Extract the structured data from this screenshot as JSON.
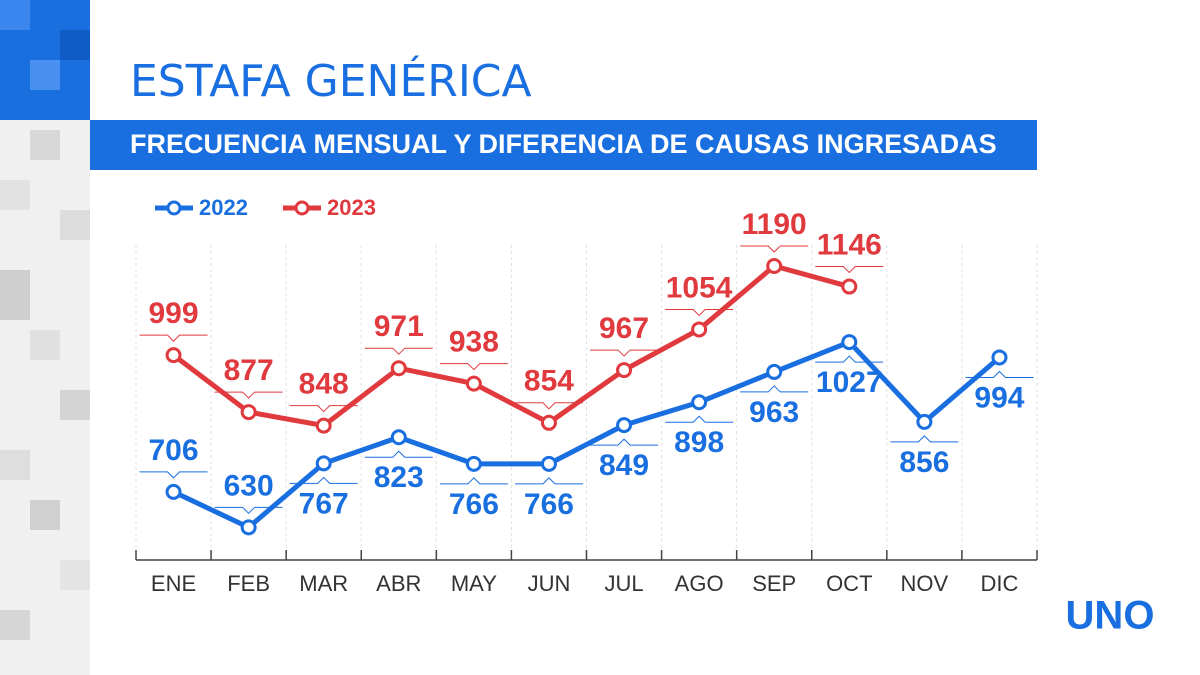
{
  "chart_data": {
    "type": "line",
    "title": "ESTAFA GENÉRICA",
    "subtitle": "FRECUENCIA MENSUAL Y DIFERENCIA DE CAUSAS INGRESADAS",
    "categories": [
      "ENE",
      "FEB",
      "MAR",
      "ABR",
      "MAY",
      "JUN",
      "JUL",
      "AGO",
      "SEP",
      "OCT",
      "NOV",
      "DIC"
    ],
    "series": [
      {
        "name": "2022",
        "color": "#1a6fe0",
        "values": [
          706,
          630,
          767,
          823,
          766,
          766,
          849,
          898,
          963,
          1027,
          856,
          994
        ]
      },
      {
        "name": "2023",
        "color": "#e03a3e",
        "values": [
          999,
          877,
          848,
          971,
          938,
          854,
          967,
          1054,
          1190,
          1146,
          null,
          null
        ]
      }
    ],
    "ylim": [
      560,
      1235
    ],
    "grid": true
  },
  "brand": "UNO"
}
